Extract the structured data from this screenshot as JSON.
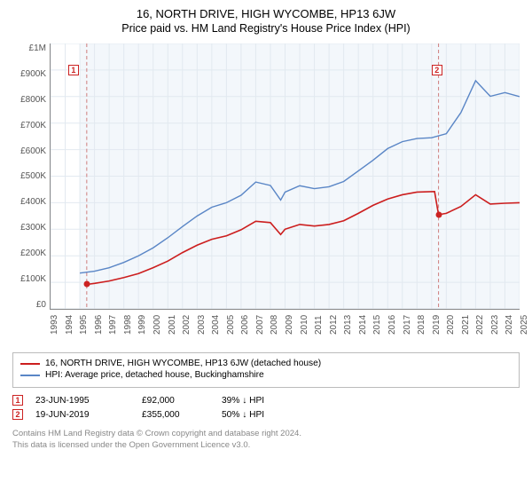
{
  "title": "16, NORTH DRIVE, HIGH WYCOMBE, HP13 6JW",
  "subtitle": "Price paid vs. HM Land Registry's House Price Index (HPI)",
  "chart": {
    "type": "line",
    "background_color": "#ffffff",
    "plot_bg_color": "#f3f7fb",
    "grid_color": "#e2e9f0",
    "axis_color": "#888888",
    "tick_fontsize": 10,
    "xlim": [
      1993,
      2025
    ],
    "ylim": [
      0,
      1000000
    ],
    "ytick_step": 100000,
    "ytick_labels": [
      "£0",
      "£100K",
      "£200K",
      "£300K",
      "£400K",
      "£500K",
      "£600K",
      "£700K",
      "£800K",
      "£900K",
      "£1M"
    ],
    "xtick_labels": [
      "1993",
      "1994",
      "1995",
      "1996",
      "1997",
      "1998",
      "1999",
      "2000",
      "2001",
      "2002",
      "2003",
      "2004",
      "2005",
      "2006",
      "2007",
      "2008",
      "2009",
      "2010",
      "2011",
      "2012",
      "2013",
      "2014",
      "2015",
      "2016",
      "2017",
      "2018",
      "2019",
      "2020",
      "2021",
      "2022",
      "2023",
      "2024",
      "2025"
    ],
    "series": [
      {
        "name": "property",
        "label": "16, NORTH DRIVE, HIGH WYCOMBE, HP13 6JW (detached house)",
        "color": "#cc1e1e",
        "line_width": 1.6,
        "x": [
          1995.47,
          1996,
          1997,
          1998,
          1999,
          2000,
          2001,
          2002,
          2003,
          2004,
          2005,
          2006,
          2007,
          2008,
          2008.7,
          2009,
          2010,
          2011,
          2012,
          2013,
          2014,
          2015,
          2016,
          2017,
          2018,
          2019.2,
          2019.47,
          2020,
          2021,
          2022,
          2023,
          2024,
          2025
        ],
        "y": [
          92000,
          96000,
          105000,
          118000,
          133000,
          155000,
          180000,
          212000,
          240000,
          262000,
          275000,
          298000,
          330000,
          325000,
          280000,
          300000,
          318000,
          312000,
          318000,
          332000,
          360000,
          390000,
          414000,
          430000,
          440000,
          442000,
          355000,
          360000,
          386000,
          430000,
          395000,
          398000,
          400000
        ]
      },
      {
        "name": "hpi",
        "label": "HPI: Average price, detached house, Buckinghamshire",
        "color": "#5a86c6",
        "line_width": 1.4,
        "x": [
          1995,
          1996,
          1997,
          1998,
          1999,
          2000,
          2001,
          2002,
          2003,
          2004,
          2005,
          2006,
          2007,
          2008,
          2008.7,
          2009,
          2010,
          2011,
          2012,
          2013,
          2014,
          2015,
          2016,
          2017,
          2018,
          2019,
          2020,
          2021,
          2022,
          2023,
          2024,
          2025
        ],
        "y": [
          135000,
          142000,
          155000,
          175000,
          200000,
          230000,
          268000,
          310000,
          350000,
          383000,
          400000,
          428000,
          478000,
          465000,
          410000,
          440000,
          464000,
          453000,
          460000,
          480000,
          520000,
          560000,
          604000,
          630000,
          642000,
          645000,
          660000,
          740000,
          860000,
          801000,
          815000,
          800000
        ]
      }
    ],
    "sale_markers": [
      {
        "n": "1",
        "x": 1995.47,
        "y": 92000,
        "box_x": 1994.2,
        "box_y": 920000
      },
      {
        "n": "2",
        "x": 2019.47,
        "y": 355000,
        "box_x": 2019.0,
        "box_y": 920000
      }
    ],
    "vlines": [
      {
        "x": 1995.47,
        "color": "#d07f7f",
        "dash": "4,3"
      },
      {
        "x": 2019.47,
        "color": "#d07f7f",
        "dash": "4,3"
      }
    ]
  },
  "legend": {
    "border_color": "#bbbbbb"
  },
  "sales": [
    {
      "n": "1",
      "date": "23-JUN-1995",
      "price": "£92,000",
      "vs_hpi": "39% ↓ HPI"
    },
    {
      "n": "2",
      "date": "19-JUN-2019",
      "price": "£355,000",
      "vs_hpi": "50% ↓ HPI"
    }
  ],
  "footnote_line1": "Contains HM Land Registry data © Crown copyright and database right 2024.",
  "footnote_line2": "This data is licensed under the Open Government Licence v3.0."
}
